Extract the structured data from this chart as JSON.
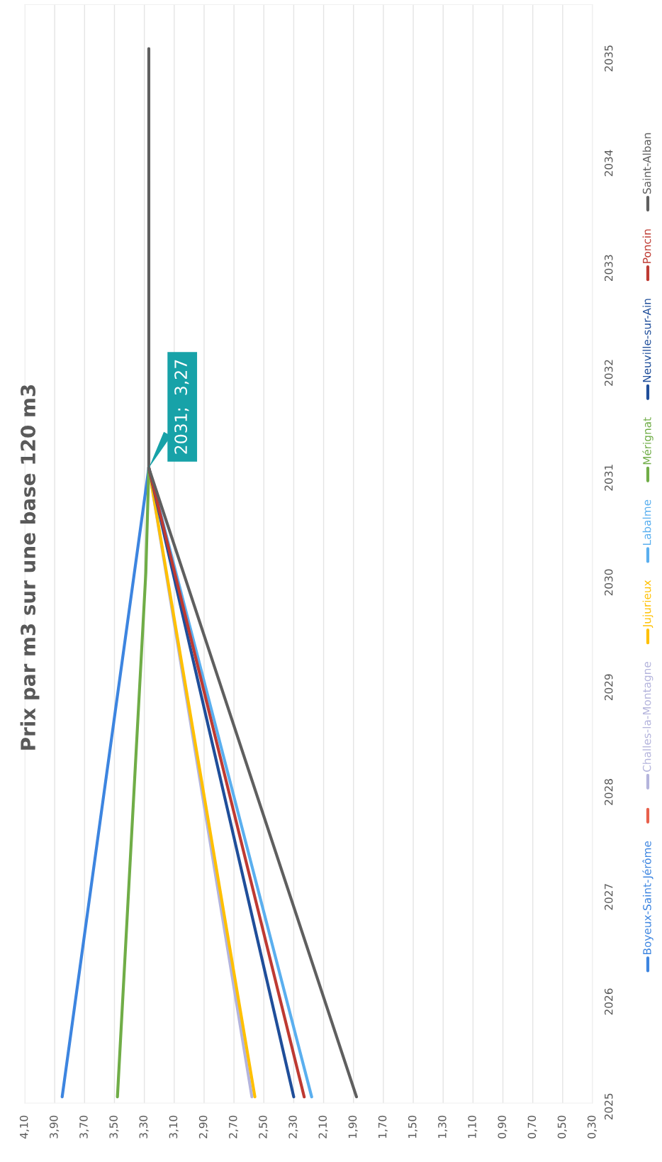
{
  "chart_data": {
    "type": "line",
    "title": "Prix par m3 sur une base 120 m3",
    "orientation": "horizontal",
    "categories": [
      "2035",
      "2034",
      "2033",
      "2032",
      "2031",
      "2030",
      "2029",
      "2028",
      "2027",
      "2026",
      "2025"
    ],
    "series": [
      {
        "name": "Boyeux-Saint-Jérôme",
        "color": "#3d85e0",
        "values": [
          null,
          null,
          null,
          null,
          3.27,
          null,
          null,
          null,
          null,
          null,
          3.85
        ]
      },
      {
        "color": "#e8604c",
        "values": [
          null,
          null,
          null,
          null,
          null,
          null,
          null,
          null,
          null,
          null,
          null
        ]
      },
      {
        "name": "Challes-la-Montagne",
        "color": "#b4b4dc",
        "values": [
          null,
          null,
          null,
          null,
          3.27,
          null,
          null,
          null,
          null,
          null,
          2.58
        ]
      },
      {
        "name": "Jujurieux",
        "color": "#ffc000",
        "values": [
          null,
          null,
          null,
          null,
          3.27,
          null,
          null,
          null,
          null,
          null,
          2.56
        ]
      },
      {
        "name": "Labalme",
        "color": "#5aafef",
        "values": [
          null,
          null,
          null,
          null,
          3.27,
          null,
          null,
          null,
          null,
          null,
          2.18
        ]
      },
      {
        "name": "Mérignat",
        "color": "#70ad47",
        "values": [
          null,
          null,
          null,
          null,
          3.27,
          3.29,
          null,
          null,
          null,
          null,
          3.48
        ]
      },
      {
        "name": "Neuville-sur-Ain",
        "color": "#1f4e9a",
        "values": [
          null,
          null,
          null,
          null,
          3.27,
          null,
          null,
          null,
          null,
          null,
          2.3
        ]
      },
      {
        "name": "Poncin",
        "color": "#be3a32",
        "values": [
          null,
          null,
          null,
          null,
          3.27,
          null,
          null,
          null,
          null,
          null,
          2.23
        ]
      },
      {
        "name": "Saint-Alban",
        "color": "#5f5f5f",
        "values": [
          3.27,
          3.27,
          3.27,
          3.27,
          3.27,
          null,
          null,
          null,
          null,
          null,
          1.88
        ]
      }
    ],
    "xlim": [
      4.1,
      0.3
    ],
    "xticks": [
      {
        "value": 4.1,
        "label": "4,10"
      },
      {
        "value": 3.9,
        "label": "3,90"
      },
      {
        "value": 3.7,
        "label": "3,70"
      },
      {
        "value": 3.5,
        "label": "3,50"
      },
      {
        "value": 3.3,
        "label": "3,30"
      },
      {
        "value": 3.1,
        "label": "3,10"
      },
      {
        "value": 2.9,
        "label": "2,90"
      },
      {
        "value": 2.7,
        "label": "2,70"
      },
      {
        "value": 2.5,
        "label": "2,50"
      },
      {
        "value": 2.3,
        "label": "2,30"
      },
      {
        "value": 2.1,
        "label": "2,10"
      },
      {
        "value": 1.9,
        "label": "1,90"
      },
      {
        "value": 1.7,
        "label": "1,70"
      },
      {
        "value": 1.5,
        "label": "1,50"
      },
      {
        "value": 1.3,
        "label": "1,30"
      },
      {
        "value": 1.1,
        "label": "1,10"
      },
      {
        "value": 0.9,
        "label": "0,90"
      },
      {
        "value": 0.7,
        "label": "0,70"
      },
      {
        "value": 0.5,
        "label": "0,50"
      },
      {
        "value": 0.3,
        "label": "0,30"
      }
    ],
    "grid": "x",
    "legend": "right",
    "marker": "none",
    "line_style": "solid",
    "annotations": [
      {
        "text": "2031;  3,27",
        "x": 3.27,
        "y": "2031"
      }
    ]
  }
}
